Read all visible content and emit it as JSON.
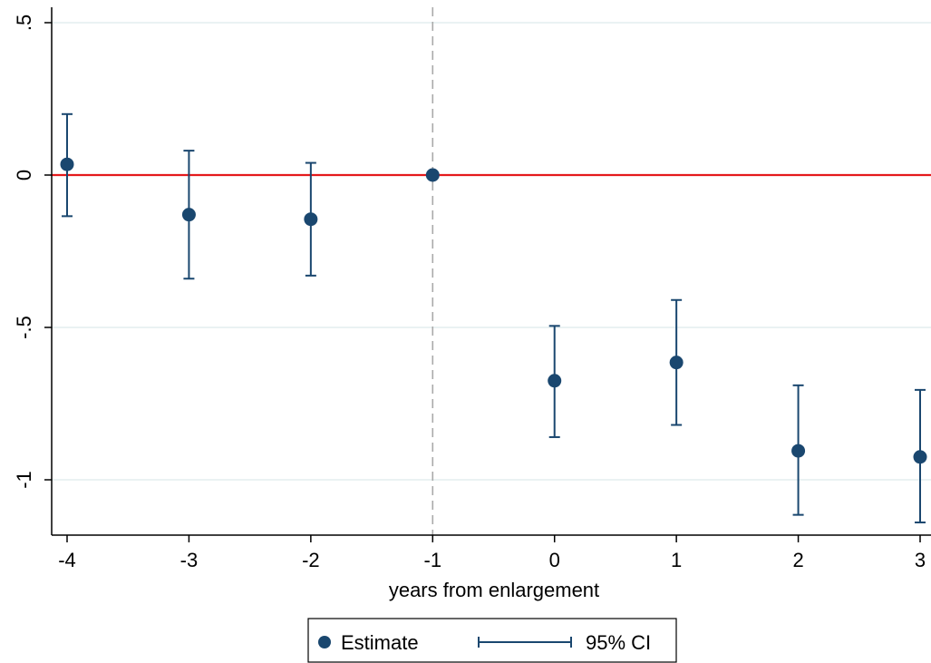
{
  "chart_data": {
    "type": "scatter",
    "title": "",
    "xlabel": "years from enlargement",
    "ylabel": "",
    "x": [
      -4,
      -3,
      -2,
      -1,
      0,
      1,
      2,
      3
    ],
    "xticks": [
      "-4",
      "-3",
      "-2",
      "-1",
      "0",
      "1",
      "2",
      "3"
    ],
    "ytick_values": [
      -1,
      -0.5,
      0,
      0.5
    ],
    "yticks": [
      "-1",
      "-.5",
      "0",
      ".5"
    ],
    "xlim": [
      -4,
      3
    ],
    "ylim": [
      -1.18,
      0.55
    ],
    "series": [
      {
        "name": "Estimate",
        "values": [
          0.035,
          -0.13,
          -0.145,
          0.0,
          -0.675,
          -0.615,
          -0.905,
          -0.925
        ]
      },
      {
        "name": "95% CI",
        "lower": [
          -0.135,
          -0.34,
          -0.33,
          0.0,
          -0.86,
          -0.82,
          -1.115,
          -1.14
        ],
        "upper": [
          0.2,
          0.08,
          0.04,
          0.0,
          -0.495,
          -0.41,
          -0.69,
          -0.705
        ]
      }
    ],
    "reference_lines": {
      "horizontal_y": 0,
      "horizontal_color": "#e41a1c",
      "vertical_x": -1,
      "vertical_style": "dashed"
    },
    "grid": true,
    "legend": {
      "position": "bottom",
      "items": [
        "Estimate",
        "95% CI"
      ]
    },
    "colors": {
      "marker": "#1a476f",
      "grid": "#eaf2f3",
      "reference": "#e41a1c",
      "dashed": "#aaaaaa"
    }
  }
}
